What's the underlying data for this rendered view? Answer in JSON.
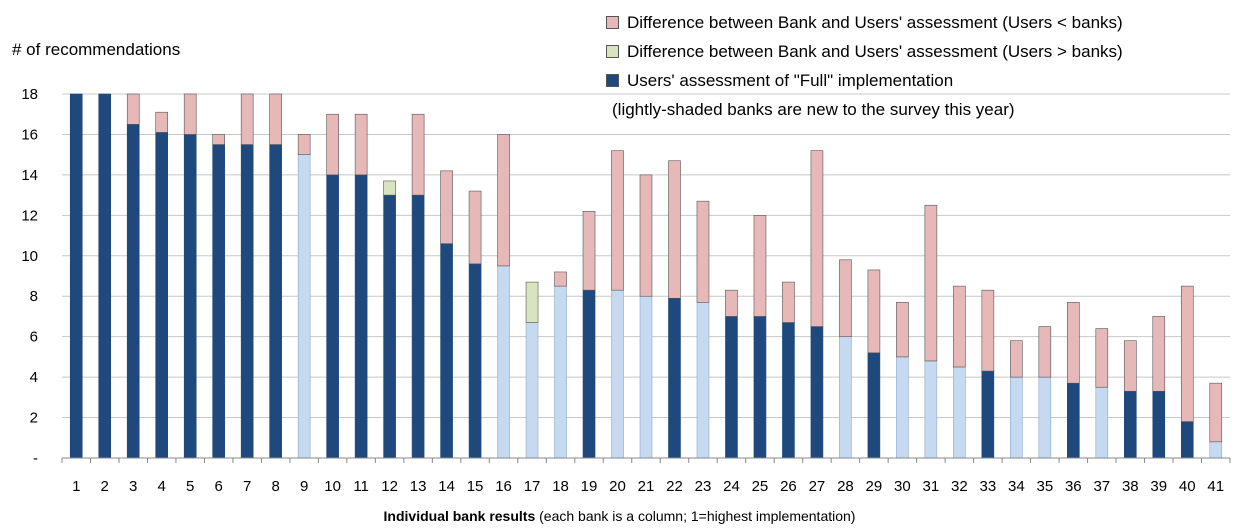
{
  "chart_data": {
    "type": "bar",
    "stacked": true,
    "ylabel": "# of recommendations",
    "ylim": [
      0,
      18
    ],
    "yticks": [
      {
        "value": 0,
        "label": "-"
      },
      {
        "value": 2,
        "label": "2"
      },
      {
        "value": 4,
        "label": "4"
      },
      {
        "value": 6,
        "label": "6"
      },
      {
        "value": 8,
        "label": "8"
      },
      {
        "value": 10,
        "label": "10"
      },
      {
        "value": 12,
        "label": "12"
      },
      {
        "value": 14,
        "label": "14"
      },
      {
        "value": 16,
        "label": "16"
      },
      {
        "value": 18,
        "label": "18"
      }
    ],
    "grid": true,
    "legend_position": "top-right",
    "xlabel_bold": "Individual bank results",
    "xlabel_rest": " (each bank is a column; 1=highest implementation)",
    "categories": [
      "1",
      "2",
      "3",
      "4",
      "5",
      "6",
      "7",
      "8",
      "9",
      "10",
      "11",
      "12",
      "13",
      "14",
      "15",
      "16",
      "17",
      "18",
      "19",
      "20",
      "21",
      "22",
      "23",
      "24",
      "25",
      "26",
      "27",
      "28",
      "29",
      "30",
      "31",
      "32",
      "33",
      "34",
      "35",
      "36",
      "37",
      "38",
      "39",
      "40",
      "41"
    ],
    "new_banks": [
      "9",
      "16",
      "17",
      "18",
      "20",
      "21",
      "23",
      "28",
      "30",
      "31",
      "32",
      "34",
      "35",
      "37",
      "41"
    ],
    "series": [
      {
        "name": "Users' assessment of \"Full\" implementation",
        "values": [
          18,
          18,
          16.5,
          16.1,
          16,
          15.5,
          15.5,
          15.5,
          15,
          14,
          14,
          13,
          13,
          10.6,
          9.6,
          9.5,
          6.7,
          8.5,
          8.3,
          8.3,
          8,
          7.9,
          7.7,
          7,
          7,
          6.7,
          6.5,
          6,
          5.2,
          5,
          4.8,
          4.5,
          4.3,
          4,
          4,
          3.7,
          3.5,
          3.3,
          3.3,
          1.8,
          0.8
        ]
      },
      {
        "name": "Difference between Bank and Users' assessment (Users < banks)",
        "values": [
          0,
          0,
          1.5,
          1,
          2,
          0.5,
          2.5,
          2.5,
          1,
          3,
          3,
          0,
          4,
          3.6,
          3.6,
          6.5,
          0,
          0.7,
          3.9,
          6.9,
          6,
          6.8,
          5,
          1.3,
          5,
          2,
          8.7,
          3.8,
          4.1,
          2.7,
          7.7,
          4,
          4,
          1.8,
          2.5,
          4,
          2.9,
          2.5,
          3.7,
          6.7,
          2.9
        ]
      },
      {
        "name": "Difference between Bank and Users' assessment (Users > banks)",
        "values": [
          0,
          0,
          0,
          0,
          0,
          0,
          0,
          0,
          0,
          0,
          0,
          0.7,
          0,
          0,
          0,
          0,
          2,
          0,
          0,
          0,
          0,
          0,
          0,
          0,
          0,
          0,
          0,
          0,
          0,
          0,
          0,
          0,
          0,
          0,
          0,
          0,
          0,
          0,
          0,
          0,
          0
        ]
      }
    ],
    "note": "(lightly-shaded banks are new to the survey this year)",
    "colors": {
      "full_existing": "#1f497d",
      "full_new": "#c5d9f1",
      "users_less": "#e6b9b8",
      "users_more": "#d7e4bd",
      "outline": "#555555",
      "grid": "#c8c8c8"
    }
  }
}
